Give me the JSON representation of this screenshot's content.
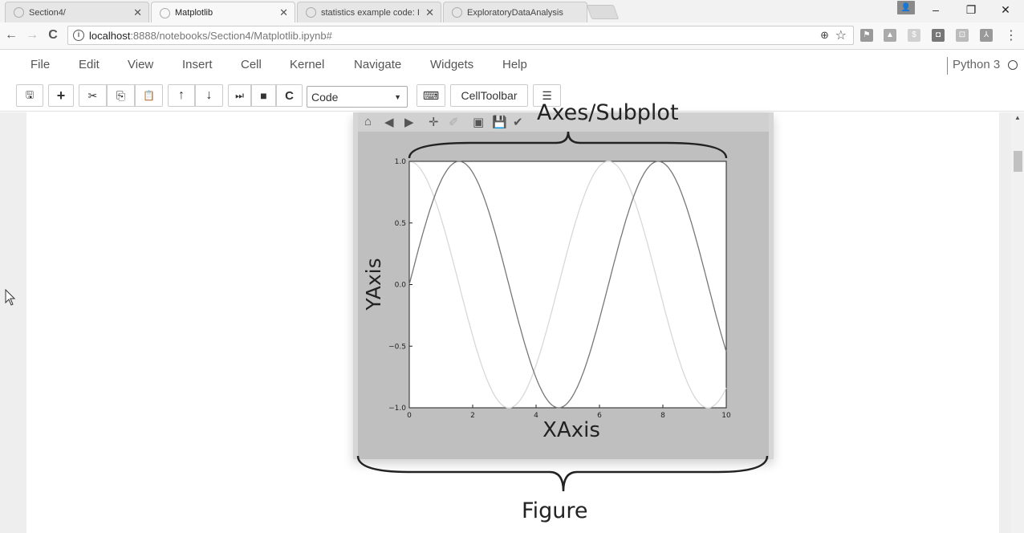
{
  "browser": {
    "tabs": [
      {
        "title": "Section4/",
        "close": "✕"
      },
      {
        "title": "Matplotlib",
        "close": "✕"
      },
      {
        "title": "statistics example code: I",
        "close": "✕"
      },
      {
        "title": "ExploratoryDataAnalysis",
        "close": "✕"
      }
    ],
    "window_controls": {
      "minimize": "–",
      "restore": "❐",
      "close": "✕"
    },
    "nav": {
      "back": "←",
      "forward": "→",
      "reload": "C"
    },
    "address": {
      "host": "localhost",
      "path": ":8888/notebooks/Section4/Matplotlib.ipynb#"
    },
    "omnibox_icons": {
      "zoom": "⊕",
      "star": "☆"
    },
    "menu_icon": "⋮"
  },
  "jupyter": {
    "menu": [
      "File",
      "Edit",
      "View",
      "Insert",
      "Cell",
      "Kernel",
      "Navigate",
      "Widgets",
      "Help"
    ],
    "kernel": "Python 3",
    "toolbar": {
      "save": "🖫",
      "insert_below": "+",
      "cut": "✂",
      "copy": "⎘",
      "paste": "📋",
      "move_up": "↑",
      "move_down": "↓",
      "run": "⏭",
      "interrupt": "■",
      "restart": "C",
      "cell_type": "Code",
      "keyboard": "⌨",
      "celltoolbar": "CellToolbar",
      "command_palette": "☰"
    }
  },
  "figure_toolbar": [
    "⌂",
    "◀",
    "▶",
    "✛",
    "✐",
    "▣",
    "💾",
    "✔"
  ],
  "annotations": {
    "axes": "Axes/Subplot",
    "figure": "Figure"
  },
  "chart_data": {
    "type": "line",
    "xlabel": "XAxis",
    "ylabel": "YAxis",
    "xlim": [
      0,
      10
    ],
    "ylim": [
      -1.0,
      1.0
    ],
    "xticks": [
      "0",
      "2",
      "4",
      "6",
      "8",
      "10"
    ],
    "yticks": [
      "1.0",
      "0.5",
      "0.0",
      "−0.5",
      "−1.0"
    ],
    "grid": false,
    "series": [
      {
        "function": "sin",
        "color": "#777777",
        "x_range": [
          0,
          10
        ]
      },
      {
        "function": "cos",
        "color": "#d8d8d8",
        "x_range": [
          0,
          10
        ]
      }
    ]
  }
}
